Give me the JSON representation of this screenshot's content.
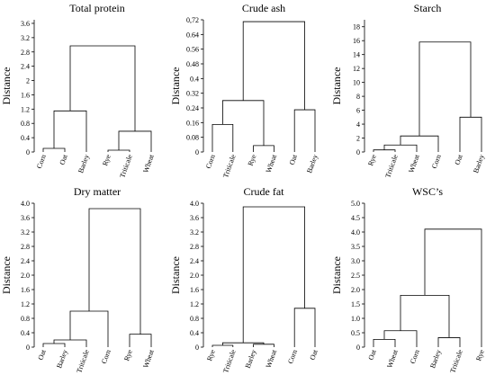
{
  "chart_data": [
    {
      "type": "dendrogram",
      "title": "Total protein",
      "ylabel": "Distance",
      "ylim": [
        0,
        3.7
      ],
      "yticks": [
        "0",
        "0.4",
        "0.8",
        "1.2",
        "1.6",
        "2",
        "2.4",
        "2.8",
        "3.2",
        "3.6"
      ],
      "leaves": [
        "Corn",
        "Oat",
        "Barley",
        "Rye",
        "Triticale",
        "Wheat"
      ],
      "merges": [
        {
          "left": "Corn",
          "right": "Oat",
          "height": 0.1
        },
        {
          "left": "Rye",
          "right": "Triticale",
          "height": 0.05
        },
        {
          "left": "Corn+Oat",
          "right": "Barley",
          "height": 1.15
        },
        {
          "left": "Rye+Triticale",
          "right": "Wheat",
          "height": 0.58
        },
        {
          "left": "Corn+Oat+Barley",
          "right": "Rye+Triticale+Wheat",
          "height": 2.97
        }
      ]
    },
    {
      "type": "dendrogram",
      "title": "Crude ash",
      "ylabel": "Distance",
      "ylim": [
        0,
        0.72
      ],
      "yticks": [
        "0",
        "0.08",
        "0.16",
        "0.24",
        "0.32",
        "0.4",
        "0.48",
        "0.56",
        "0.64",
        "0,72"
      ],
      "leaves": [
        "Corn",
        "Triticale",
        "Rye",
        "Wheat",
        "Oat",
        "Barley"
      ],
      "merges": [
        {
          "left": "Corn",
          "right": "Triticale",
          "height": 0.15
        },
        {
          "left": "Rye",
          "right": "Wheat",
          "height": 0.035
        },
        {
          "left": "Corn+Triticale",
          "right": "Rye+Wheat",
          "height": 0.28
        },
        {
          "left": "Oat",
          "right": "Barley",
          "height": 0.23
        },
        {
          "left": "Corn+Triticale+Rye+Wheat",
          "right": "Oat+Barley",
          "height": 0.71
        }
      ]
    },
    {
      "type": "dendrogram",
      "title": "Starch",
      "ylabel": "Distance",
      "ylim": [
        0,
        19
      ],
      "yticks": [
        "0",
        "2",
        "4",
        "6",
        "8",
        "10",
        "12",
        "14",
        "16",
        "18"
      ],
      "leaves": [
        "Rye",
        "Triticale",
        "Wheat",
        "Corn",
        "Oat",
        "Barley"
      ],
      "merges": [
        {
          "left": "Rye",
          "right": "Triticale",
          "height": 0.3
        },
        {
          "left": "Rye+Triticale",
          "right": "Wheat",
          "height": 1.0
        },
        {
          "left": "Rye+Triticale+Wheat",
          "right": "Corn",
          "height": 2.3
        },
        {
          "left": "Oat",
          "right": "Barley",
          "height": 5.0
        },
        {
          "left": "Rye+Triticale+Wheat+Corn",
          "right": "Oat+Barley",
          "height": 15.8
        }
      ]
    },
    {
      "type": "dendrogram",
      "title": "Dry matter",
      "ylabel": "Distance",
      "ylim": [
        0,
        4.0
      ],
      "yticks": [
        "0",
        "0.4",
        "0.8",
        "1.2",
        "1.6",
        "2.0",
        "2.4",
        "2.8",
        "3.2",
        "3.6",
        "4.0"
      ],
      "leaves": [
        "Oat",
        "Barley",
        "Triticale",
        "Corn",
        "Rye",
        "Wheat"
      ],
      "merges": [
        {
          "left": "Oat",
          "right": "Barley",
          "height": 0.1
        },
        {
          "left": "Oat+Barley",
          "right": "Triticale",
          "height": 0.2
        },
        {
          "left": "Oat+Barley+Triticale",
          "right": "Corn",
          "height": 1.0
        },
        {
          "left": "Rye",
          "right": "Wheat",
          "height": 0.36
        },
        {
          "left": "Oat+Barley+Triticale+Corn",
          "right": "Rye+Wheat",
          "height": 3.85
        }
      ]
    },
    {
      "type": "dendrogram",
      "title": "Crude fat",
      "ylabel": "Distance",
      "ylim": [
        0,
        4.0
      ],
      "yticks": [
        "0",
        "0.4",
        "0.8",
        "1.2",
        "1.6",
        "2.0",
        "2.4",
        "2.8",
        "3.2",
        "3.6",
        "4.0"
      ],
      "leaves": [
        "Rye",
        "Triticale",
        "Barley",
        "Wheat",
        "Corn",
        "Oat"
      ],
      "merges": [
        {
          "left": "Rye",
          "right": "Triticale",
          "height": 0.05
        },
        {
          "left": "Barley",
          "right": "Wheat",
          "height": 0.08
        },
        {
          "left": "Rye+Triticale",
          "right": "Barley+Wheat",
          "height": 0.12
        },
        {
          "left": "Corn",
          "right": "Oat",
          "height": 1.08
        },
        {
          "left": "Rye+Triticale+Barley+Wheat",
          "right": "Corn+Oat",
          "height": 3.9
        }
      ]
    },
    {
      "type": "dendrogram",
      "title": "WSC’s",
      "ylabel": "Distance",
      "ylim": [
        0,
        5.0
      ],
      "yticks": [
        "0",
        "0.5",
        "1.0",
        "1.5",
        "2.0",
        "2.5",
        "3.0",
        "3.5",
        "4.0",
        "4.5",
        "5.0"
      ],
      "leaves": [
        "Oat",
        "Wheat",
        "Corn",
        "Barley",
        "Triticale",
        "Rye"
      ],
      "merges": [
        {
          "left": "Oat",
          "right": "Wheat",
          "height": 0.27
        },
        {
          "left": "Oat+Wheat",
          "right": "Corn",
          "height": 0.57
        },
        {
          "left": "Barley",
          "right": "Triticale",
          "height": 0.33
        },
        {
          "left": "Oat+Wheat+Corn",
          "right": "Barley+Triticale",
          "height": 1.8
        },
        {
          "left": "Oat+Wheat+Corn+Barley+Triticale",
          "right": "Rye",
          "height": 4.1
        }
      ]
    }
  ]
}
